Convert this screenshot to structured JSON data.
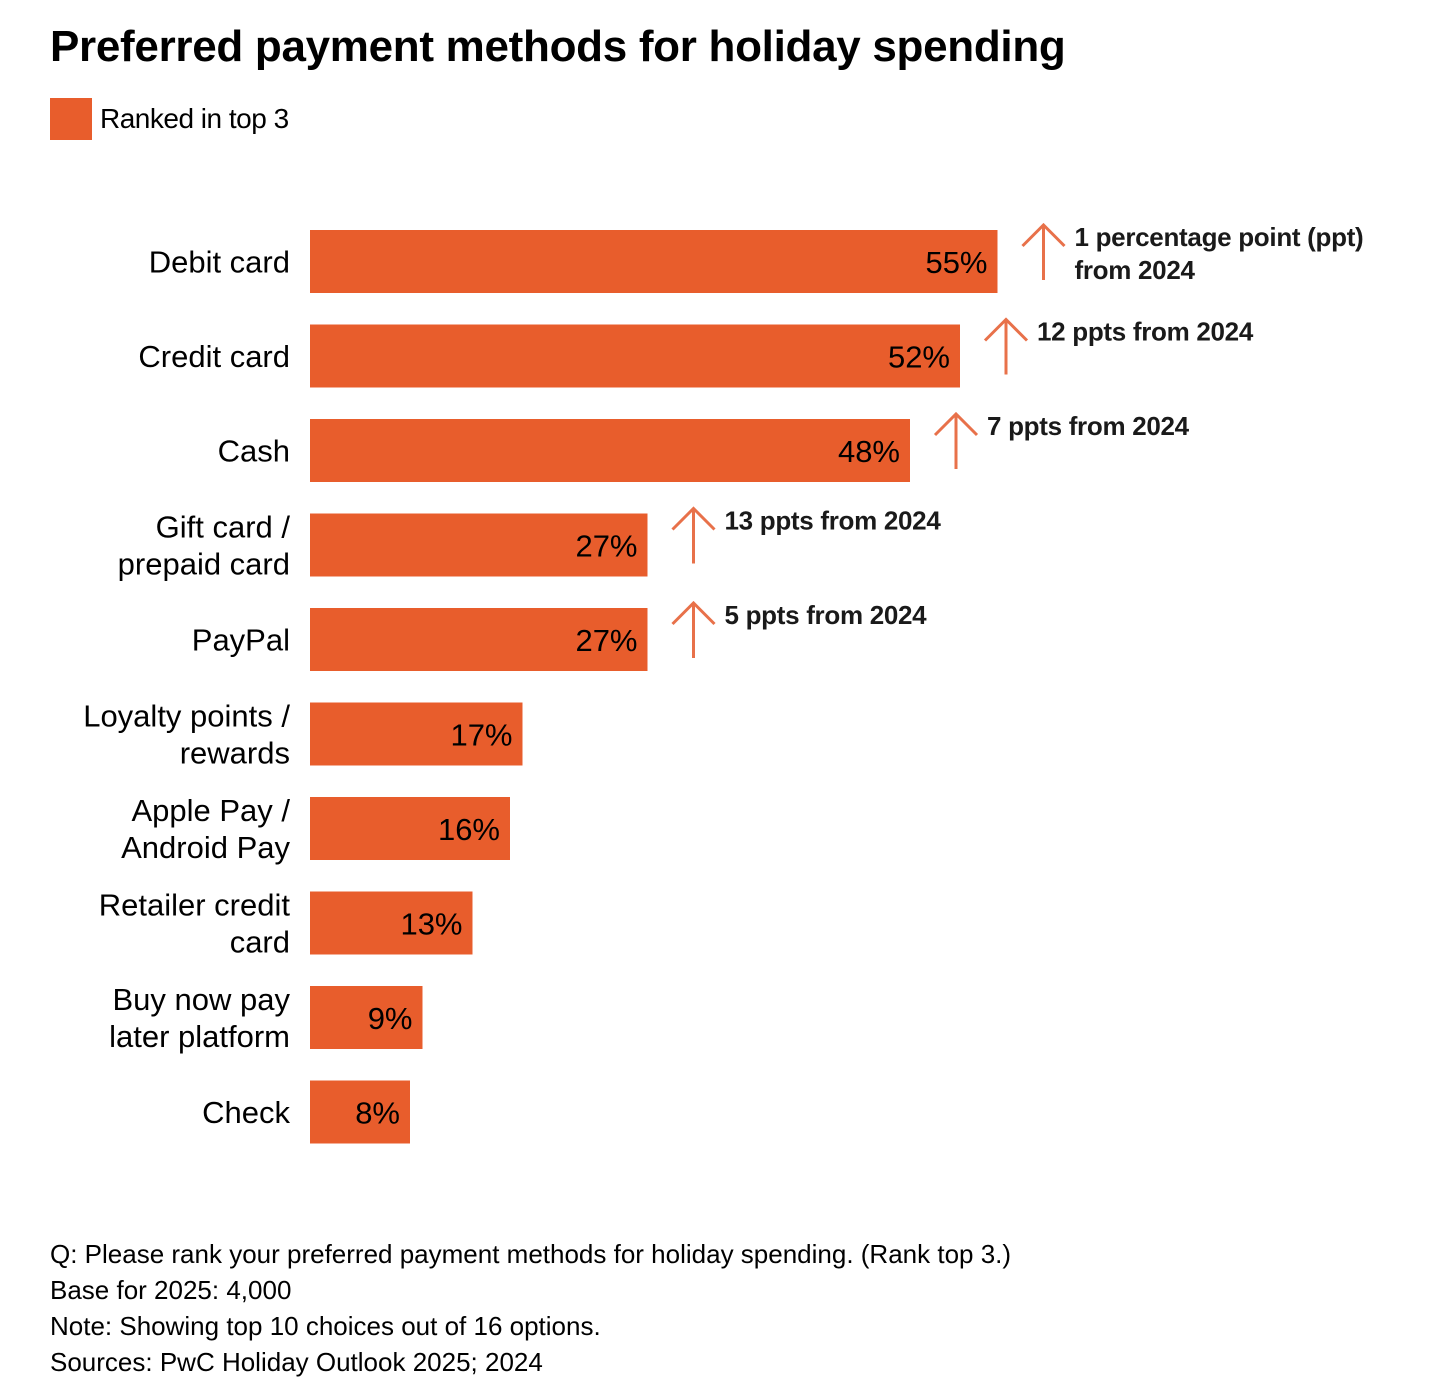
{
  "chart_data": {
    "type": "bar",
    "orientation": "horizontal",
    "title": "Preferred payment methods for holiday spending",
    "legend": [
      "Ranked in top 3"
    ],
    "categories": [
      [
        "Debit card"
      ],
      [
        "Credit card"
      ],
      [
        "Cash"
      ],
      [
        "Gift card /",
        "prepaid card"
      ],
      [
        "PayPal"
      ],
      [
        "Loyalty points /",
        "rewards"
      ],
      [
        "Apple Pay /",
        "Android Pay"
      ],
      [
        "Retailer credit",
        "card"
      ],
      [
        "Buy now pay",
        "later platform"
      ],
      [
        "Check"
      ]
    ],
    "series": [
      {
        "name": "Ranked in top 3",
        "values": [
          55,
          52,
          48,
          27,
          27,
          17,
          16,
          13,
          9,
          8
        ]
      }
    ],
    "value_labels": [
      "55%",
      "52%",
      "48%",
      "27%",
      "27%",
      "17%",
      "16%",
      "13%",
      "9%",
      "8%"
    ],
    "annotations": [
      {
        "category_index": 0,
        "direction": "up",
        "lines": [
          "1 percentage point (ppt)",
          "from 2024"
        ]
      },
      {
        "category_index": 1,
        "direction": "up",
        "lines": [
          "12 ppts from 2024"
        ]
      },
      {
        "category_index": 2,
        "direction": "up",
        "lines": [
          "7 ppts from 2024"
        ]
      },
      {
        "category_index": 3,
        "direction": "up",
        "lines": [
          "13 ppts from 2024"
        ]
      },
      {
        "category_index": 4,
        "direction": "up",
        "lines": [
          "5 ppts from 2024"
        ]
      }
    ],
    "xlim": [
      0,
      100
    ],
    "grid": false,
    "legend_position": "top-left",
    "colors": {
      "bar": "#E85D2C",
      "arrow": "#E8714A",
      "text": "#000000"
    }
  },
  "footnotes": [
    "Q: Please rank your preferred payment methods for holiday spending. (Rank top 3.)",
    "Base for 2025: 4,000",
    "Note: Showing top 10 choices out of 16 options.",
    "Sources: PwC Holiday Outlook 2025; 2024"
  ]
}
